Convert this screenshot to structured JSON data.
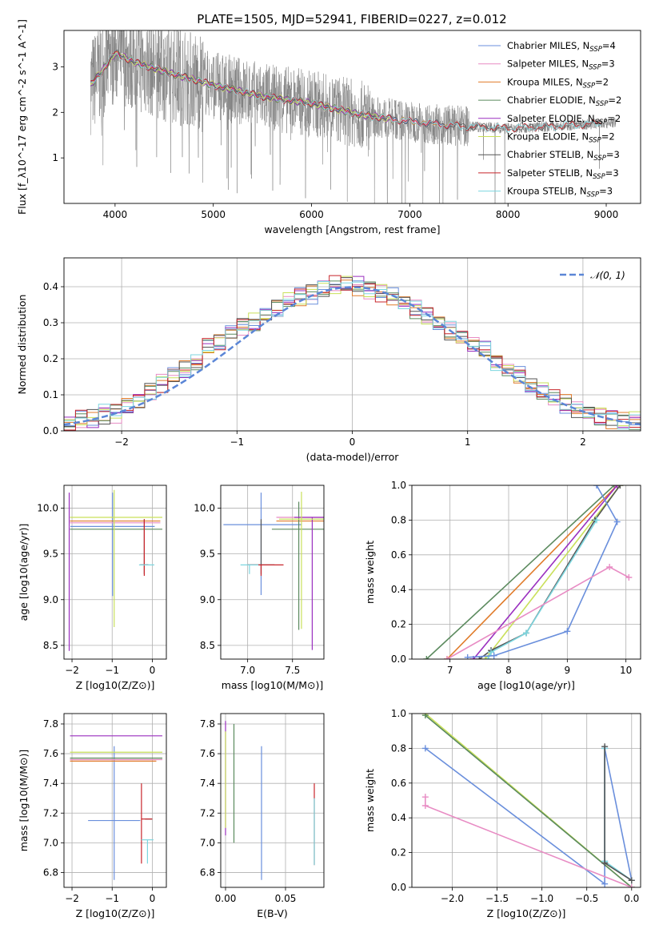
{
  "figure": {
    "title": "PLATE=1505, MJD=52941, FIBERID=0227, z=0.012"
  },
  "colors": {
    "Chabrier MILES": "#6a8fdc",
    "Salpeter MILES": "#e88cc4",
    "Kroupa MILES": "#e07b2a",
    "Chabrier ELODIE": "#5b8a5e",
    "Salpeter ELODIE": "#9a2fbf",
    "Kroupa ELODIE": "#c9e05a",
    "Chabrier STELIB": "#555555",
    "Salpeter STELIB": "#c8252b",
    "Kroupa STELIB": "#7dd6df",
    "data": "#808080"
  },
  "chart_data": [
    {
      "id": "spectrum",
      "type": "line",
      "xlabel": "wavelength [Angstrom, rest frame]",
      "ylabel": "Flux [f_λ10^-17 erg cm^-2 s^-1 A^-1]",
      "xlim": [
        3480,
        9350
      ],
      "ylim": [
        0,
        3.8
      ],
      "xticks": [
        4000,
        5000,
        6000,
        7000,
        8000,
        9000
      ],
      "yticks": [
        1,
        2,
        3
      ],
      "legend_position": "top-right",
      "legend": [
        {
          "model": "Chabrier MILES",
          "nssp": "4"
        },
        {
          "model": "Salpeter MILES",
          "nssp": "3"
        },
        {
          "model": "Kroupa MILES",
          "nssp": "2"
        },
        {
          "model": "Chabrier ELODIE",
          "nssp": "2"
        },
        {
          "model": "Salpeter ELODIE",
          "nssp": "2"
        },
        {
          "model": "Kroupa ELODIE",
          "nssp": "2"
        },
        {
          "model": "Chabrier STELIB",
          "nssp": "3"
        },
        {
          "model": "Salpeter STELIB",
          "nssp": "3"
        },
        {
          "model": "Kroupa STELIB",
          "nssp": "3"
        }
      ],
      "continuum": {
        "wavelength": [
          3750,
          3900,
          4000,
          4200,
          4500,
          5000,
          5500,
          6000,
          6500,
          7000,
          7500,
          8000,
          8500,
          9100
        ],
        "flux": [
          2.6,
          3.0,
          3.3,
          3.1,
          2.9,
          2.6,
          2.35,
          2.2,
          1.95,
          1.8,
          1.7,
          1.65,
          1.7,
          1.78
        ]
      },
      "model_ranges": {
        "MILES": [
          3750,
          7420
        ],
        "ELODIE": [
          3750,
          6800
        ],
        "STELIB": [
          3750,
          8950
        ]
      }
    },
    {
      "id": "residual_hist",
      "type": "histogram",
      "xlabel": "(data-model)/error",
      "ylabel": "Normed distribution",
      "xlim": [
        -2.5,
        2.5
      ],
      "ylim": [
        0,
        0.48
      ],
      "xticks": [
        -2,
        -1,
        0,
        1,
        2
      ],
      "yticks": [
        0.0,
        0.1,
        0.2,
        0.3,
        0.4
      ],
      "grid": true,
      "legend_position": "top-right",
      "legend": "N(0,1)",
      "bin_centers": [
        -2.45,
        -2.35,
        -2.25,
        -2.15,
        -2.05,
        -1.95,
        -1.85,
        -1.75,
        -1.65,
        -1.55,
        -1.45,
        -1.35,
        -1.25,
        -1.15,
        -1.05,
        -0.95,
        -0.85,
        -0.75,
        -0.65,
        -0.55,
        -0.45,
        -0.35,
        -0.25,
        -0.15,
        -0.05,
        0.05,
        0.15,
        0.25,
        0.35,
        0.45,
        0.55,
        0.65,
        0.75,
        0.85,
        0.95,
        1.05,
        1.15,
        1.25,
        1.35,
        1.45,
        1.55,
        1.65,
        1.75,
        1.85,
        1.95,
        2.05,
        2.15,
        2.25,
        2.35,
        2.45
      ],
      "counts": [
        0.02,
        0.03,
        0.035,
        0.045,
        0.05,
        0.07,
        0.085,
        0.11,
        0.13,
        0.155,
        0.17,
        0.19,
        0.23,
        0.25,
        0.27,
        0.29,
        0.3,
        0.32,
        0.34,
        0.36,
        0.37,
        0.38,
        0.395,
        0.405,
        0.41,
        0.4,
        0.395,
        0.385,
        0.37,
        0.355,
        0.335,
        0.315,
        0.3,
        0.28,
        0.26,
        0.24,
        0.22,
        0.19,
        0.17,
        0.15,
        0.125,
        0.11,
        0.09,
        0.075,
        0.06,
        0.05,
        0.04,
        0.035,
        0.03,
        0.025
      ]
    },
    {
      "id": "age_vs_Z",
      "type": "errorbar",
      "xlabel": "Z [log10(Z/Z⊙)]",
      "ylabel": "age  [log10(age/yr)]",
      "xlim": [
        -2.2,
        0.35
      ],
      "ylim": [
        8.35,
        10.25
      ],
      "xticks": [
        -2,
        -1,
        0
      ],
      "yticks": [
        8.5,
        9.0,
        9.5,
        10.0
      ],
      "grid": true,
      "points": [
        {
          "model": "Chabrier MILES",
          "x": -0.99,
          "y": 9.8,
          "xerr": [
            1.05,
            1.05
          ],
          "yerr": [
            0.76,
            0.37
          ]
        },
        {
          "model": "Salpeter MILES",
          "x": -0.95,
          "y": 9.84,
          "xerr": [
            1.1,
            1.15
          ],
          "yerr": [
            0.0,
            0.0
          ]
        },
        {
          "model": "Kroupa MILES",
          "x": -0.95,
          "y": 9.86,
          "xerr": [
            1.1,
            1.15
          ],
          "yerr": [
            0.0,
            0.0
          ]
        },
        {
          "model": "Chabrier ELODIE",
          "x": -0.95,
          "y": 9.77,
          "xerr": [
            1.1,
            1.2
          ],
          "yerr": [
            0.0,
            0.0
          ]
        },
        {
          "model": "Salpeter ELODIE",
          "x": -2.07,
          "y": 9.87,
          "xerr": [
            0.0,
            0.0
          ],
          "yerr": [
            1.43,
            0.3
          ]
        },
        {
          "model": "Kroupa ELODIE",
          "x": -0.95,
          "y": 9.9,
          "xerr": [
            1.1,
            1.2
          ],
          "yerr": [
            1.2,
            0.3
          ]
        },
        {
          "model": "Chabrier STELIB",
          "x": -0.2,
          "y": 9.38,
          "xerr": [
            0.1,
            0.1
          ],
          "yerr": [
            0.1,
            0.5
          ]
        },
        {
          "model": "Salpeter STELIB",
          "x": -0.2,
          "y": 9.38,
          "xerr": [
            0.1,
            0.1
          ],
          "yerr": [
            0.12,
            0.5
          ]
        },
        {
          "model": "Kroupa STELIB",
          "x": -0.15,
          "y": 9.38,
          "xerr": [
            0.18,
            0.2
          ],
          "yerr": [
            0.0,
            0.0
          ]
        }
      ]
    },
    {
      "id": "age_vs_mass",
      "type": "errorbar",
      "xlabel": "mass [log10(M/M⊙)]",
      "ylabel": "",
      "xlim": [
        6.7,
        7.85
      ],
      "ylim": [
        8.35,
        10.25
      ],
      "xticks": [
        7.0,
        7.5
      ],
      "yticks": [
        8.5,
        9.0,
        9.5,
        10.0
      ],
      "grid": true,
      "points": [
        {
          "model": "Chabrier MILES",
          "x": 7.15,
          "y": 9.82,
          "xerr": [
            0.42,
            0.45
          ],
          "yerr": [
            0.77,
            0.35
          ]
        },
        {
          "model": "Salpeter MILES",
          "x": 7.6,
          "y": 9.9,
          "xerr": [
            0.28,
            0.25
          ],
          "yerr": [
            0.0,
            0.0
          ]
        },
        {
          "model": "Kroupa MILES",
          "x": 7.6,
          "y": 9.86,
          "xerr": [
            0.28,
            0.25
          ],
          "yerr": [
            0.0,
            0.0
          ]
        },
        {
          "model": "Chabrier ELODIE",
          "x": 7.57,
          "y": 9.77,
          "xerr": [
            0.3,
            0.3
          ],
          "yerr": [
            1.1,
            0.3
          ]
        },
        {
          "model": "Salpeter ELODIE",
          "x": 7.72,
          "y": 9.9,
          "xerr": [
            0.2,
            0.15
          ],
          "yerr": [
            1.45,
            0.0
          ]
        },
        {
          "model": "Kroupa ELODIE",
          "x": 7.6,
          "y": 9.88,
          "xerr": [
            0.25,
            0.25
          ],
          "yerr": [
            1.2,
            0.3
          ]
        },
        {
          "model": "Chabrier STELIB",
          "x": 7.15,
          "y": 9.38,
          "xerr": [
            0.15,
            0.15
          ],
          "yerr": [
            0.1,
            0.5
          ]
        },
        {
          "model": "Salpeter STELIB",
          "x": 7.15,
          "y": 9.38,
          "xerr": [
            0.15,
            0.25
          ],
          "yerr": [
            0.12,
            0.0
          ]
        },
        {
          "model": "Kroupa STELIB",
          "x": 7.02,
          "y": 9.38,
          "xerr": [
            0.1,
            0.1
          ],
          "yerr": [
            0.1,
            0.0
          ]
        }
      ]
    },
    {
      "id": "massweight_vs_age",
      "type": "line",
      "xlabel": "age  [log10(age/yr)]",
      "ylabel": "mass weight",
      "xlim": [
        6.35,
        10.25
      ],
      "ylim": [
        0.0,
        1.0
      ],
      "xticks": [
        7,
        8,
        9,
        10
      ],
      "yticks": [
        0.0,
        0.2,
        0.4,
        0.6,
        0.8,
        1.0
      ],
      "grid": true,
      "series": [
        {
          "model": "Chabrier ELODIE",
          "x": [
            6.6,
            9.8
          ],
          "y": [
            0.0,
            1.0
          ]
        },
        {
          "model": "Kroupa MILES",
          "x": [
            6.95,
            9.85
          ],
          "y": [
            0.0,
            1.0
          ]
        },
        {
          "model": "Salpeter ELODIE",
          "x": [
            7.4,
            9.85
          ],
          "y": [
            0.0,
            1.0
          ]
        },
        {
          "model": "Kroupa ELODIE",
          "x": [
            7.6,
            9.9
          ],
          "y": [
            0.0,
            1.0
          ]
        },
        {
          "model": "Chabrier STELIB",
          "x": [
            7.5,
            7.7,
            8.3,
            9.47,
            9.9
          ],
          "y": [
            0.0,
            0.05,
            0.15,
            0.8,
            1.0
          ]
        },
        {
          "model": "Kroupa STELIB",
          "x": [
            7.65,
            7.7,
            8.3,
            9.5
          ],
          "y": [
            0.0,
            0.04,
            0.15,
            0.8
          ]
        },
        {
          "model": "Chabrier MILES",
          "x": [
            7.3,
            7.75,
            9.0,
            9.85,
            9.5
          ],
          "y": [
            0.01,
            0.02,
            0.16,
            0.79,
            1.0
          ]
        },
        {
          "model": "Salpeter MILES",
          "x": [
            6.95,
            9.72,
            10.05
          ],
          "y": [
            0.0,
            0.53,
            0.47
          ]
        }
      ]
    },
    {
      "id": "mass_vs_Z",
      "type": "errorbar",
      "xlabel": "Z [log10(Z/Z⊙)]",
      "ylabel": "mass [log10(M/M⊙)]",
      "xlim": [
        -2.2,
        0.35
      ],
      "ylim": [
        6.7,
        7.87
      ],
      "xticks": [
        -2,
        -1,
        0
      ],
      "yticks": [
        6.8,
        7.0,
        7.2,
        7.4,
        7.6,
        7.8
      ],
      "grid": true,
      "points": [
        {
          "model": "Chabrier MILES",
          "x": -0.95,
          "y": 7.15,
          "xerr": [
            0.65,
            0.65
          ],
          "yerr": [
            0.4,
            0.5
          ]
        },
        {
          "model": "Salpeter MILES",
          "x": -0.95,
          "y": 7.56,
          "xerr": [
            1.1,
            1.2
          ],
          "yerr": [
            0.0,
            0.0
          ]
        },
        {
          "model": "Kroupa MILES",
          "x": -0.95,
          "y": 7.55,
          "xerr": [
            1.1,
            1.05
          ],
          "yerr": [
            0.0,
            0.0
          ]
        },
        {
          "model": "Chabrier ELODIE",
          "x": -0.95,
          "y": 7.57,
          "xerr": [
            1.1,
            1.2
          ],
          "yerr": [
            0.0,
            0.0
          ]
        },
        {
          "model": "Salpeter ELODIE",
          "x": -0.95,
          "y": 7.72,
          "xerr": [
            1.1,
            1.2
          ],
          "yerr": [
            0.0,
            0.0
          ]
        },
        {
          "model": "Kroupa ELODIE",
          "x": -0.95,
          "y": 7.61,
          "xerr": [
            1.1,
            1.2
          ],
          "yerr": [
            0.0,
            0.0
          ]
        },
        {
          "model": "Chabrier STELIB",
          "x": -0.1,
          "y": 7.16,
          "xerr": [
            0.08,
            0.1
          ],
          "yerr": [
            0.0,
            0.0
          ]
        },
        {
          "model": "Salpeter STELIB",
          "x": -0.27,
          "y": 7.16,
          "xerr": [
            0.0,
            0.27
          ],
          "yerr": [
            0.3,
            0.24
          ]
        },
        {
          "model": "Kroupa STELIB",
          "x": -0.12,
          "y": 7.02,
          "xerr": [
            0.15,
            0.15
          ],
          "yerr": [
            0.16,
            0.0
          ]
        }
      ]
    },
    {
      "id": "mass_vs_ebv",
      "type": "errorbar",
      "xlabel": "E(B-V)",
      "ylabel": "",
      "xlim": [
        -0.004,
        0.082
      ],
      "ylim": [
        6.7,
        7.87
      ],
      "xticks": [
        0.0,
        0.05
      ],
      "yticks": [
        6.8,
        7.0,
        7.2,
        7.4,
        7.6,
        7.8
      ],
      "grid": true,
      "points": [
        {
          "model": "Chabrier MILES",
          "x": 0.03,
          "y": 7.2,
          "xerr": [
            0.0,
            0.0
          ],
          "yerr": [
            0.45,
            0.45
          ]
        },
        {
          "model": "Chabrier ELODIE",
          "x": 0.007,
          "y": 7.35,
          "xerr": [
            0.0,
            0.0
          ],
          "yerr": [
            0.35,
            0.45
          ]
        },
        {
          "model": "Salpeter ELODIE",
          "x": 0.0,
          "y": 7.5,
          "xerr": [
            0.0,
            0.0
          ],
          "yerr": [
            0.45,
            0.32
          ]
        },
        {
          "model": "Kroupa ELODIE",
          "x": 0.0,
          "y": 7.6,
          "xerr": [
            0.0,
            0.0
          ],
          "yerr": [
            0.5,
            0.15
          ]
        },
        {
          "model": "Salpeter STELIB",
          "x": 0.074,
          "y": 7.15,
          "xerr": [
            0.0,
            0.0
          ],
          "yerr": [
            0.3,
            0.25
          ]
        },
        {
          "model": "Kroupa STELIB",
          "x": 0.074,
          "y": 7.05,
          "xerr": [
            0.0,
            0.0
          ],
          "yerr": [
            0.2,
            0.25
          ]
        }
      ]
    },
    {
      "id": "massweight_vs_Z",
      "type": "line",
      "xlabel": "Z [log10(Z/Z⊙)]",
      "ylabel": "mass weight",
      "xlim": [
        -2.45,
        0.1
      ],
      "ylim": [
        0.0,
        1.0
      ],
      "xticks": [
        -2.0,
        -1.5,
        -1.0,
        -0.5,
        0.0
      ],
      "yticks": [
        0.0,
        0.2,
        0.4,
        0.6,
        0.8,
        1.0
      ],
      "grid": true,
      "series": [
        {
          "model": "Kroupa ELODIE",
          "x": [
            -2.3,
            0.0
          ],
          "y": [
            1.0,
            0.0
          ]
        },
        {
          "model": "Chabrier ELODIE",
          "x": [
            -2.3,
            0.0
          ],
          "y": [
            0.99,
            0.0
          ]
        },
        {
          "model": "Chabrier MILES",
          "x": [
            -2.3,
            -0.3,
            -0.3,
            -0.3,
            0.0
          ],
          "y": [
            0.8,
            0.02,
            0.15,
            0.8,
            0.04
          ]
        },
        {
          "model": "Salpeter MILES",
          "x": [
            -2.3,
            -2.3,
            0.0
          ],
          "y": [
            0.52,
            0.47,
            0.0
          ]
        },
        {
          "model": "Kroupa STELIB",
          "x": [
            -0.3,
            -0.3,
            0.0
          ],
          "y": [
            0.8,
            0.15,
            0.04
          ]
        },
        {
          "model": "Chabrier STELIB",
          "x": [
            -0.3,
            -0.3,
            0.0
          ],
          "y": [
            0.81,
            0.14,
            0.04
          ]
        }
      ]
    }
  ]
}
